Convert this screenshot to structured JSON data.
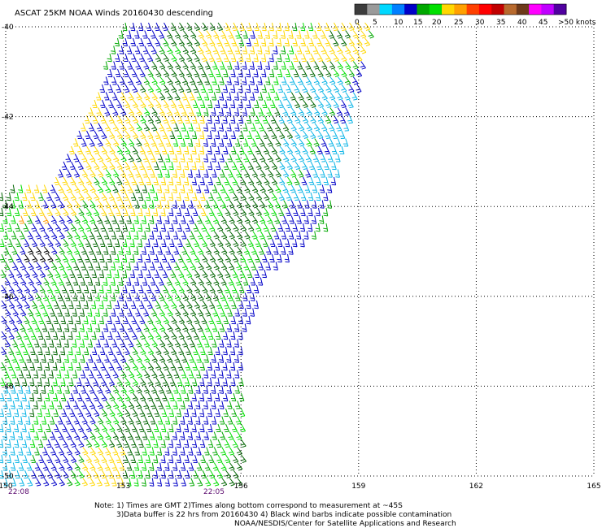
{
  "title": "ASCAT 25KM NOAA Winds 20160430 descending",
  "legend": {
    "labels": [
      "0",
      "5",
      "10",
      "15",
      "20",
      "25",
      "30",
      "35",
      "40",
      "45",
      ">50 knots"
    ],
    "colors": [
      "#3c3c3c",
      "#9a9a9a",
      "#00d8ff",
      "#0080ff",
      "#0000c8",
      "#00a800",
      "#00e000",
      "#ffd700",
      "#ffa000",
      "#ff4000",
      "#ff0000",
      "#c00000",
      "#b86a2e",
      "#6e3a1a",
      "#ff00ff",
      "#c000ff",
      "#5000a0"
    ]
  },
  "axes": {
    "lon_ticks": [
      "150",
      "153",
      "156",
      "159",
      "162",
      "165"
    ],
    "lat_ticks": [
      "-40",
      "-42",
      "-44",
      "-46",
      "-48",
      "-50"
    ],
    "lon_range": [
      150,
      165
    ],
    "lat_range": [
      -50,
      -40
    ]
  },
  "times": [
    "22:08",
    "22:05"
  ],
  "notes": {
    "line1": "Note: 1) Times are GMT 2)Times along bottom correspond to measurement at ~45S",
    "line2": "3)Data buffer is 22 hrs from 20160430 4) Black wind barbs indicate possible contamination",
    "line3": "NOAA/NESDIS/Center for Satellite Applications and Research"
  },
  "wind_colors": {
    "dark_green": "#006400",
    "green": "#00a800",
    "light_green": "#00dd00",
    "blue": "#0000c8",
    "cyan": "#0ab4e6",
    "yellow": "#ffd700",
    "orange": "#ff9a00",
    "red": "#ff2000",
    "black": "#000000"
  }
}
